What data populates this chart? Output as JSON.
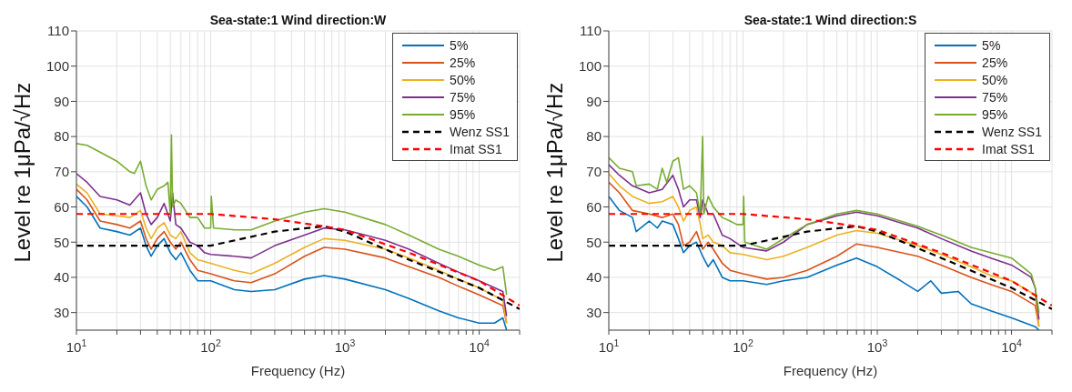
{
  "chart_data": [
    {
      "type": "line",
      "title": "Sea-state:1 Wind direction:W",
      "xlabel": "Frequency (Hz)",
      "ylabel": "Level re 1μPa/√Hz",
      "log": "x",
      "grid": true,
      "legend": "top right",
      "xlim": [
        10,
        20000
      ],
      "xticks": [
        {
          "value": 10,
          "label": "10$^{1}$"
        },
        {
          "value": 20,
          "label": null
        },
        {
          "value": 30,
          "label": null
        },
        {
          "value": 40,
          "label": null
        },
        {
          "value": 50,
          "label": null
        },
        {
          "value": 60,
          "label": null
        },
        {
          "value": 70,
          "label": null
        },
        {
          "value": 80,
          "label": null
        },
        {
          "value": 90,
          "label": null
        },
        {
          "value": 100,
          "label": "10$^{2}$"
        },
        {
          "value": 200,
          "label": null
        },
        {
          "value": 300,
          "label": null
        },
        {
          "value": 400,
          "label": null
        },
        {
          "value": 500,
          "label": null
        },
        {
          "value": 600,
          "label": null
        },
        {
          "value": 700,
          "label": null
        },
        {
          "value": 800,
          "label": null
        },
        {
          "value": 900,
          "label": null
        },
        {
          "value": 1000,
          "label": "10$^{3}$"
        },
        {
          "value": 2000,
          "label": null
        },
        {
          "value": 3000,
          "label": null
        },
        {
          "value": 4000,
          "label": null
        },
        {
          "value": 5000,
          "label": null
        },
        {
          "value": 6000,
          "label": null
        },
        {
          "value": 7000,
          "label": null
        },
        {
          "value": 8000,
          "label": null
        },
        {
          "value": 9000,
          "label": null
        },
        {
          "value": 10000,
          "label": "10$^{4}$"
        },
        {
          "value": 20000,
          "label": null
        }
      ],
      "ylim": [
        25,
        110
      ],
      "yticks": [
        30,
        40,
        50,
        60,
        70,
        80,
        90,
        100,
        110
      ],
      "series": [
        {
          "name": "5%",
          "color": "#0072bd",
          "x": [
            10,
            12,
            15,
            20,
            25,
            30,
            33,
            36,
            40,
            45,
            50,
            55,
            60,
            70,
            80,
            100,
            150,
            200,
            300,
            500,
            700,
            1000,
            2000,
            3000,
            5000,
            7000,
            10000,
            13000,
            15000,
            16000
          ],
          "values": [
            63,
            60,
            54,
            53,
            52,
            54,
            49,
            46,
            49,
            51,
            47,
            45,
            47,
            42,
            39,
            39,
            36.5,
            36,
            36.5,
            39.5,
            40.5,
            39.5,
            36.5,
            34,
            30.5,
            28.5,
            27,
            27,
            28.5,
            25
          ]
        },
        {
          "name": "25%",
          "color": "#d95319",
          "x": [
            10,
            12,
            15,
            20,
            25,
            30,
            33,
            36,
            40,
            45,
            50,
            55,
            60,
            70,
            80,
            100,
            150,
            200,
            300,
            500,
            700,
            1000,
            2000,
            3000,
            5000,
            7000,
            10000,
            15000,
            16000
          ],
          "values": [
            65,
            62,
            56,
            55,
            54,
            56,
            51,
            48,
            51,
            53,
            50,
            48,
            50,
            45,
            42,
            41,
            39,
            38.5,
            41,
            46,
            48.5,
            48,
            45.5,
            43,
            40,
            37.5,
            35,
            32,
            27
          ]
        },
        {
          "name": "50%",
          "color": "#edb120",
          "x": [
            10,
            12,
            15,
            20,
            25,
            30,
            33,
            36,
            40,
            45,
            50,
            55,
            60,
            70,
            80,
            100,
            150,
            200,
            300,
            500,
            700,
            1000,
            2000,
            3000,
            5000,
            7000,
            10000,
            15000,
            16000
          ],
          "values": [
            66.5,
            64,
            58,
            57.5,
            57,
            59,
            54,
            51,
            54,
            55.5,
            52,
            51,
            53,
            47,
            45,
            44,
            42,
            41,
            44,
            48.5,
            51,
            50.5,
            48,
            45.5,
            42,
            39.5,
            37,
            33.5,
            27
          ]
        },
        {
          "name": "75%",
          "color": "#7e2f8e",
          "x": [
            10,
            12,
            15,
            20,
            25,
            30,
            33,
            36,
            40,
            45,
            50,
            52,
            55,
            60,
            70,
            80,
            90,
            100,
            150,
            200,
            300,
            500,
            700,
            1000,
            2000,
            3000,
            5000,
            7000,
            10000,
            15000,
            16000
          ],
          "values": [
            69.5,
            67,
            63,
            62,
            60.5,
            64,
            58,
            55,
            57,
            61,
            56,
            64,
            55,
            54,
            50,
            49,
            47,
            46.5,
            46,
            45.5,
            49,
            52,
            54,
            53.5,
            50.5,
            48,
            44,
            41.5,
            39,
            36,
            29
          ]
        },
        {
          "name": "95%",
          "color": "#77ac30",
          "x": [
            10,
            12,
            16,
            20,
            25,
            27,
            30,
            33,
            36,
            40,
            45,
            48,
            50,
            51,
            52,
            55,
            60,
            70,
            80,
            90,
            100,
            101,
            105,
            150,
            200,
            300,
            500,
            700,
            1000,
            2000,
            3000,
            5000,
            7000,
            10000,
            13000,
            15000,
            16000
          ],
          "values": [
            78,
            77.5,
            75,
            73,
            70,
            69.5,
            73,
            66,
            62,
            65,
            66,
            67,
            58,
            80.5,
            60,
            62,
            61,
            57,
            57,
            54,
            54,
            63,
            54,
            53.5,
            53.5,
            56,
            58.5,
            59.5,
            58.5,
            55,
            52,
            48,
            46,
            43.5,
            42,
            43,
            35
          ]
        },
        {
          "name": "Wenz SS1",
          "color": "#000000",
          "line_style": "dashed",
          "x": [
            10,
            100,
            300,
            700,
            1000,
            3000,
            10000,
            15000,
            20000
          ],
          "values": [
            49,
            49,
            53,
            54.5,
            53,
            45,
            37,
            33.5,
            31
          ]
        },
        {
          "name": "Imat SS1",
          "color": "#ff0000",
          "line_style": "dashed",
          "x": [
            10,
            100,
            300,
            700,
            1000,
            3000,
            10000,
            20000
          ],
          "values": [
            58,
            58,
            56.5,
            54.5,
            53.5,
            47,
            39,
            32
          ]
        }
      ]
    },
    {
      "type": "line",
      "title": "Sea-state:1 Wind direction:S",
      "xlabel": "Frequency (Hz)",
      "ylabel": "Level re 1μPa/√Hz",
      "log": "x",
      "grid": true,
      "legend": "top right",
      "xlim": [
        10,
        20000
      ],
      "xticks": [
        {
          "value": 10,
          "label": "10$^{1}$"
        },
        {
          "value": 20,
          "label": null
        },
        {
          "value": 30,
          "label": null
        },
        {
          "value": 40,
          "label": null
        },
        {
          "value": 50,
          "label": null
        },
        {
          "value": 60,
          "label": null
        },
        {
          "value": 70,
          "label": null
        },
        {
          "value": 80,
          "label": null
        },
        {
          "value": 90,
          "label": null
        },
        {
          "value": 100,
          "label": "10$^{2}$"
        },
        {
          "value": 200,
          "label": null
        },
        {
          "value": 300,
          "label": null
        },
        {
          "value": 400,
          "label": null
        },
        {
          "value": 500,
          "label": null
        },
        {
          "value": 600,
          "label": null
        },
        {
          "value": 700,
          "label": null
        },
        {
          "value": 800,
          "label": null
        },
        {
          "value": 900,
          "label": null
        },
        {
          "value": 1000,
          "label": "10$^{3}$"
        },
        {
          "value": 2000,
          "label": null
        },
        {
          "value": 3000,
          "label": null
        },
        {
          "value": 4000,
          "label": null
        },
        {
          "value": 5000,
          "label": null
        },
        {
          "value": 6000,
          "label": null
        },
        {
          "value": 7000,
          "label": null
        },
        {
          "value": 8000,
          "label": null
        },
        {
          "value": 9000,
          "label": null
        },
        {
          "value": 10000,
          "label": "10$^{4}$"
        },
        {
          "value": 20000,
          "label": null
        }
      ],
      "ylim": [
        25,
        110
      ],
      "yticks": [
        30,
        40,
        50,
        60,
        70,
        80,
        90,
        100,
        110
      ],
      "series": [
        {
          "name": "5%",
          "color": "#0072bd",
          "x": [
            10,
            12,
            15,
            16,
            20,
            23,
            25,
            30,
            33,
            36,
            40,
            45,
            50,
            55,
            60,
            70,
            80,
            100,
            150,
            200,
            300,
            500,
            700,
            1000,
            1500,
            2000,
            2500,
            3000,
            4000,
            5000,
            7000,
            10000,
            15000,
            16000
          ],
          "values": [
            63,
            59,
            57,
            53,
            56,
            54,
            56,
            55,
            51,
            47,
            49,
            50,
            46,
            43,
            45,
            40,
            39,
            39,
            38,
            39,
            40,
            43.5,
            45.5,
            43,
            39,
            36,
            39,
            35.5,
            36,
            32.5,
            30.5,
            28.5,
            26,
            25
          ]
        },
        {
          "name": "25%",
          "color": "#d95319",
          "x": [
            10,
            12,
            15,
            20,
            25,
            30,
            33,
            36,
            40,
            45,
            50,
            55,
            60,
            70,
            80,
            100,
            150,
            200,
            300,
            500,
            700,
            1000,
            2000,
            3000,
            5000,
            7000,
            10000,
            15000,
            16000
          ],
          "values": [
            67,
            64,
            59,
            58,
            57,
            58,
            55,
            49,
            50,
            53,
            48,
            50,
            48,
            44,
            42,
            41,
            39.5,
            40,
            42,
            46,
            49.5,
            48.5,
            46,
            43.5,
            40,
            38,
            36,
            32,
            26
          ]
        },
        {
          "name": "50%",
          "color": "#edb120",
          "x": [
            10,
            12,
            15,
            20,
            25,
            30,
            33,
            36,
            40,
            45,
            48,
            50,
            55,
            60,
            70,
            80,
            100,
            150,
            200,
            300,
            500,
            700,
            1000,
            2000,
            3000,
            5000,
            7000,
            10000,
            15000,
            16000
          ],
          "values": [
            69.5,
            66,
            63,
            61,
            61.5,
            63,
            60,
            56,
            59,
            60,
            55,
            51,
            52,
            50,
            49,
            47,
            46.5,
            45,
            46,
            48.5,
            52,
            53.3,
            52.5,
            49,
            46.5,
            43,
            40.5,
            39,
            35,
            26
          ]
        },
        {
          "name": "75%",
          "color": "#7e2f8e",
          "x": [
            10,
            12,
            15,
            20,
            25,
            30,
            33,
            36,
            40,
            45,
            48,
            50,
            55,
            60,
            70,
            80,
            100,
            150,
            200,
            300,
            500,
            700,
            1000,
            2000,
            3000,
            5000,
            7000,
            10000,
            14000,
            15000,
            16000
          ],
          "values": [
            72,
            69,
            66,
            64,
            65,
            69,
            65,
            60,
            62,
            62,
            57,
            62,
            58,
            58,
            52,
            51,
            48.5,
            47.5,
            50,
            55,
            57.5,
            58.5,
            57.5,
            54,
            51,
            47.5,
            45.5,
            43.5,
            40,
            37,
            28
          ]
        },
        {
          "name": "95%",
          "color": "#77ac30",
          "x": [
            10,
            12,
            15,
            16,
            20,
            23,
            25,
            27,
            30,
            33,
            36,
            40,
            45,
            48,
            50,
            51,
            55,
            60,
            70,
            80,
            90,
            100,
            101,
            103,
            150,
            200,
            300,
            500,
            700,
            1000,
            2000,
            3000,
            5000,
            7000,
            10000,
            14000,
            15000,
            16000
          ],
          "values": [
            74,
            71,
            70,
            66,
            66.5,
            65,
            71,
            67,
            73,
            74,
            65,
            66,
            64,
            58,
            80,
            58,
            63,
            60,
            57,
            56,
            55,
            55,
            63,
            50,
            48,
            51,
            55,
            58,
            59,
            58,
            54.5,
            52,
            48.5,
            47,
            45.5,
            41,
            37,
            30
          ]
        },
        {
          "name": "Wenz SS1",
          "color": "#000000",
          "line_style": "dashed",
          "x": [
            10,
            100,
            300,
            700,
            1000,
            3000,
            10000,
            15000,
            20000
          ],
          "values": [
            49,
            49,
            53,
            54.5,
            53,
            45.5,
            37,
            33.5,
            31
          ]
        },
        {
          "name": "Imat SS1",
          "color": "#ff0000",
          "line_style": "dashed",
          "x": [
            10,
            100,
            300,
            700,
            1000,
            3000,
            10000,
            20000
          ],
          "values": [
            58,
            58,
            56.5,
            54.5,
            53.5,
            47,
            39,
            32
          ]
        }
      ]
    }
  ]
}
